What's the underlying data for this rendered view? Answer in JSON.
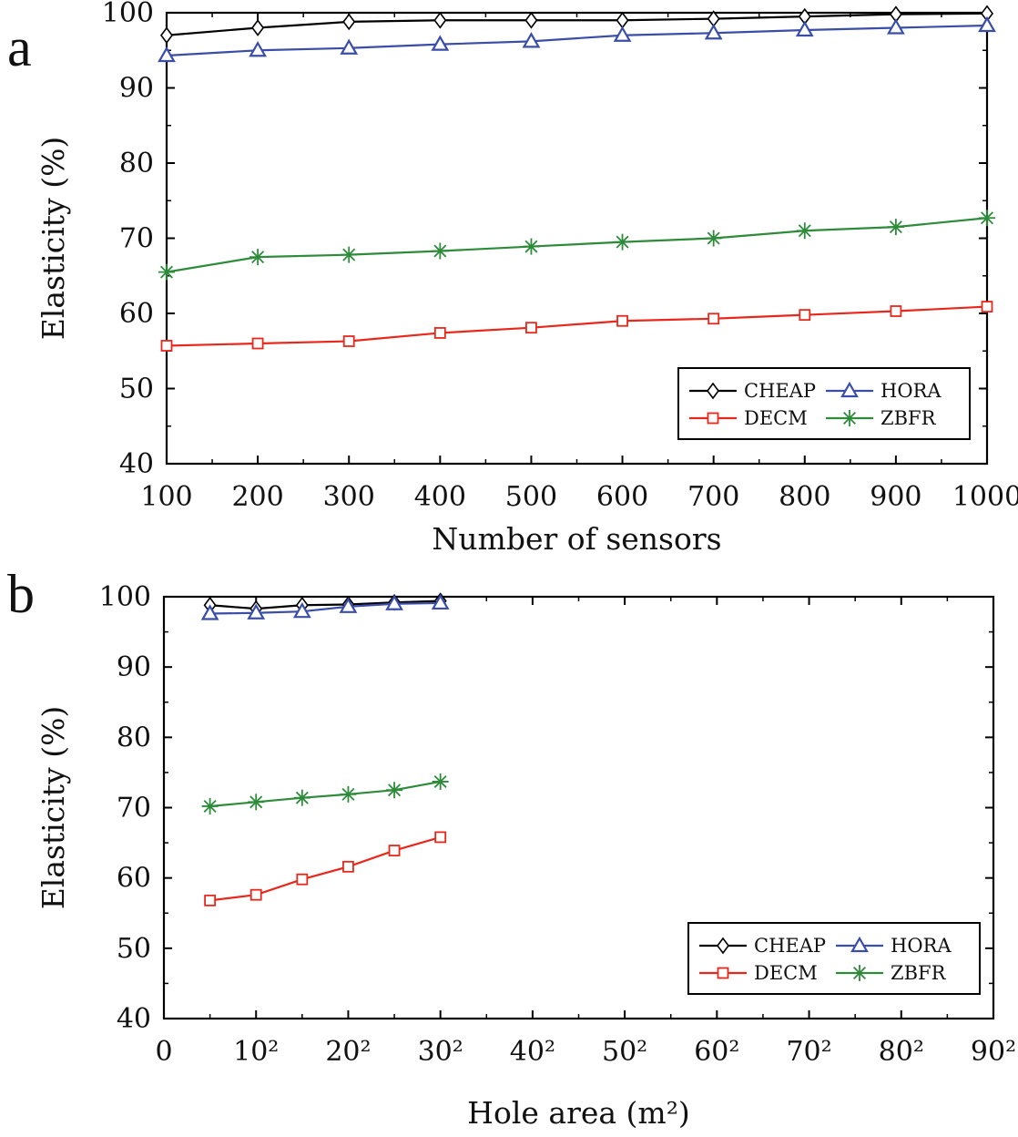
{
  "chart_data": [
    {
      "panel_label": "a",
      "type": "line",
      "xlabel": "Number of sensors",
      "ylabel": "Elasticity (%)",
      "xlim": [
        100,
        1000
      ],
      "ylim": [
        40,
        100
      ],
      "x_ticks": [
        100,
        200,
        300,
        400,
        500,
        600,
        700,
        800,
        900,
        1000
      ],
      "x_tick_labels": [
        "100",
        "200",
        "300",
        "400",
        "500",
        "600",
        "700",
        "800",
        "900",
        "1000"
      ],
      "y_ticks": [
        40,
        50,
        60,
        70,
        80,
        90,
        100
      ],
      "y_tick_labels": [
        "40",
        "50",
        "60",
        "70",
        "80",
        "90",
        "100"
      ],
      "x": [
        100,
        200,
        300,
        400,
        500,
        600,
        700,
        800,
        900,
        1000
      ],
      "legend_position": "bottom-right",
      "series": [
        {
          "name": "CHEAP",
          "color": "#000000",
          "marker": "diamond",
          "values": [
            97,
            98,
            98.8,
            99,
            99,
            99,
            99.2,
            99.5,
            99.8,
            99.9
          ]
        },
        {
          "name": "HORA",
          "color": "#3a4ea8",
          "marker": "triangle",
          "values": [
            94.3,
            95,
            95.3,
            95.8,
            96.2,
            97,
            97.3,
            97.7,
            98,
            98.3
          ]
        },
        {
          "name": "DECM",
          "color": "#e8281c",
          "marker": "square",
          "values": [
            55.7,
            56,
            56.3,
            57.4,
            58.1,
            59,
            59.3,
            59.8,
            60.3,
            60.9
          ]
        },
        {
          "name": "ZBFR",
          "color": "#2e8b3a",
          "marker": "star",
          "values": [
            65.5,
            67.5,
            67.8,
            68.3,
            68.9,
            69.5,
            70,
            71,
            71.5,
            72.7
          ]
        }
      ]
    },
    {
      "panel_label": "b",
      "type": "line",
      "xlabel": "Hole area (m²)",
      "ylabel": "Elasticity (%)",
      "xlim": [
        0,
        8100
      ],
      "ylim": [
        40,
        100
      ],
      "x_ticks": [
        0,
        100,
        400,
        900,
        1600,
        2500,
        3600,
        4900,
        6400,
        8100
      ],
      "x_tick_labels": [
        "0",
        "10²",
        "20²",
        "30²",
        "40²",
        "50²",
        "60²",
        "70²",
        "80²",
        "90²"
      ],
      "x_tick_spacing": "even",
      "y_ticks": [
        40,
        50,
        60,
        70,
        80,
        90,
        100
      ],
      "y_tick_labels": [
        "40",
        "50",
        "60",
        "70",
        "80",
        "90",
        "100"
      ],
      "x": [
        25,
        100,
        225,
        400,
        625,
        900
      ],
      "legend_position": "bottom-right",
      "series": [
        {
          "name": "CHEAP",
          "color": "#000000",
          "marker": "diamond",
          "values": [
            98.8,
            98.3,
            98.8,
            98.9,
            99.2,
            99.4
          ]
        },
        {
          "name": "HORA",
          "color": "#3a4ea8",
          "marker": "triangle",
          "values": [
            97.6,
            97.7,
            97.9,
            98.6,
            99,
            99.1
          ]
        },
        {
          "name": "DECM",
          "color": "#e8281c",
          "marker": "square",
          "values": [
            56.8,
            57.6,
            59.8,
            61.6,
            63.9,
            65.8
          ]
        },
        {
          "name": "ZBFR",
          "color": "#2e8b3a",
          "marker": "star",
          "values": [
            70.2,
            70.8,
            71.4,
            71.9,
            72.5,
            73.7
          ]
        }
      ]
    }
  ]
}
